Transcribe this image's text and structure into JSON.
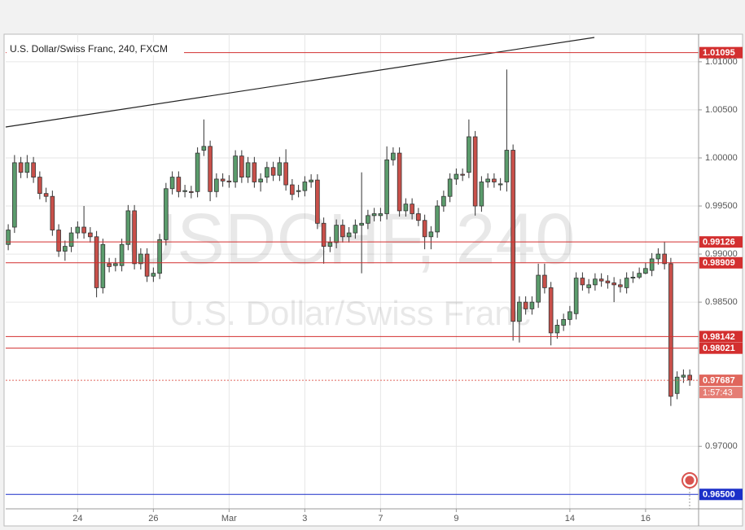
{
  "chart_data": {
    "type": "candlestick",
    "title": "U.S. Dollar/Swiss Franc, 240, FXCM",
    "watermark": {
      "symbol": "USDCHF, 240",
      "description": "U.S. Dollar/Swiss Franc"
    },
    "x": [
      0,
      1,
      2,
      3,
      4,
      5,
      6,
      7,
      8,
      9,
      10,
      11,
      12,
      13,
      14,
      15,
      16,
      17,
      18,
      19,
      20,
      21,
      22,
      23,
      24,
      25,
      26,
      27,
      28,
      29,
      30,
      31,
      32,
      33,
      34,
      35,
      36,
      37,
      38,
      39,
      40,
      41,
      42,
      43,
      44,
      45,
      46,
      47,
      48,
      49,
      50,
      51,
      52,
      53,
      54,
      55,
      56,
      57,
      58,
      59,
      60,
      61,
      62,
      63,
      64,
      65,
      66,
      67,
      68,
      69,
      70,
      71,
      72,
      73,
      74,
      75,
      76,
      77,
      78,
      79,
      80,
      81,
      82,
      83,
      84,
      85,
      86,
      87,
      88,
      89,
      90,
      91,
      92,
      93,
      94,
      95,
      96,
      97,
      98,
      99,
      100,
      101,
      102,
      103,
      104,
      105,
      106,
      107,
      108
    ],
    "open": [
      0.991,
      0.9928,
      0.9995,
      0.9985,
      0.9995,
      0.998,
      0.9963,
      0.996,
      0.9925,
      0.9903,
      0.9908,
      0.9922,
      0.9928,
      0.9922,
      0.9918,
      0.9865,
      0.989,
      0.9888,
      0.9888,
      0.991,
      0.9945,
      0.989,
      0.99,
      0.9877,
      0.988,
      0.9915,
      0.9968,
      0.998,
      0.9965,
      0.9965,
      0.9965,
      1.0008,
      1.0012,
      0.9965,
      0.9978,
      0.9976,
      0.9975,
      1.0002,
      0.998,
      0.9995,
      0.9975,
      0.998,
      0.999,
      0.9982,
      0.9995,
      0.9972,
      0.9965,
      0.9966,
      0.9975,
      0.9977,
      0.9932,
      0.9908,
      0.9912,
      0.993,
      0.9918,
      0.9922,
      0.993,
      0.9932,
      0.994,
      0.994,
      0.9942,
      0.9998,
      1.0005,
      0.9945,
      0.9952,
      0.9942,
      0.9935,
      0.9918,
      0.9923,
      0.995,
      0.996,
      0.9978,
      0.9983,
      0.9985,
      1.0022,
      0.995,
      0.9975,
      0.9978,
      0.9972,
      0.9975,
      1.0008,
      0.983,
      0.985,
      0.9843,
      0.985,
      0.9878,
      0.9865,
      0.9818,
      0.9826,
      0.9832,
      0.9838,
      0.9875,
      0.9865,
      0.9868,
      0.9874,
      0.9872,
      0.987,
      0.9868,
      0.9865,
      0.9875,
      0.9876,
      0.988,
      0.9883,
      0.9895,
      0.99,
      0.989,
      0.9755,
      0.9772,
      0.9774
    ],
    "high": [
      0.9931,
      1.0003,
      1.0001,
      1.0003,
      1.0001,
      0.9986,
      0.9969,
      0.9966,
      0.9931,
      0.9914,
      0.9928,
      0.9934,
      0.995,
      0.9928,
      0.9924,
      0.9916,
      0.9896,
      0.9896,
      0.9916,
      0.9951,
      0.9951,
      0.9906,
      0.9906,
      0.9886,
      0.9921,
      0.9974,
      0.9986,
      0.9986,
      0.9972,
      0.9971,
      1.0011,
      1.004,
      1.0018,
      0.9984,
      0.9984,
      0.9982,
      1.0008,
      1.0008,
      1.0001,
      1.0001,
      0.9984,
      0.9996,
      0.9996,
      1.0001,
      1.0009,
      0.9978,
      0.9972,
      0.9981,
      0.9983,
      0.9983,
      0.9938,
      0.9918,
      0.9936,
      0.9936,
      0.9928,
      0.9936,
      0.9985,
      0.9946,
      0.9948,
      0.9948,
      1.0012,
      1.0011,
      1.0011,
      0.9958,
      0.9958,
      0.9948,
      0.9941,
      0.9929,
      0.9956,
      0.9966,
      0.9984,
      0.9989,
      0.9989,
      1.004,
      1.0028,
      0.9981,
      0.9984,
      0.9984,
      0.9979,
      1.0092,
      1.0014,
      0.9856,
      0.9856,
      0.9856,
      0.989,
      0.989,
      0.9871,
      0.9832,
      0.9838,
      0.9846,
      0.9881,
      0.9881,
      0.9874,
      0.988,
      0.988,
      0.9878,
      0.9876,
      0.9874,
      0.9881,
      0.9882,
      0.9886,
      0.9891,
      0.9901,
      0.9906,
      0.9913,
      0.9896,
      0.9778,
      0.978,
      0.978
    ],
    "low": [
      0.9904,
      0.9922,
      0.9979,
      0.9979,
      0.9974,
      0.9957,
      0.9954,
      0.9919,
      0.9897,
      0.9893,
      0.9902,
      0.9916,
      0.9916,
      0.9912,
      0.9855,
      0.9859,
      0.9881,
      0.9882,
      0.9882,
      0.9904,
      0.9884,
      0.9884,
      0.9871,
      0.9871,
      0.9874,
      0.9909,
      0.9962,
      0.9959,
      0.9959,
      0.9958,
      0.9959,
      1.0002,
      0.9955,
      0.9959,
      0.997,
      0.9969,
      0.9969,
      0.9974,
      0.9974,
      0.9969,
      0.9965,
      0.9974,
      0.9976,
      0.9976,
      0.9966,
      0.9956,
      0.9959,
      0.996,
      0.9969,
      0.9926,
      0.989,
      0.9902,
      0.9906,
      0.9912,
      0.9912,
      0.9916,
      0.988,
      0.9926,
      0.9934,
      0.9934,
      0.9936,
      0.9992,
      0.9939,
      0.9939,
      0.9936,
      0.9929,
      0.9905,
      0.9905,
      0.9917,
      0.9944,
      0.9954,
      0.9972,
      0.9976,
      0.9979,
      0.994,
      0.9944,
      0.9969,
      0.9969,
      0.9966,
      0.9965,
      0.981,
      0.9808,
      0.9837,
      0.9837,
      0.9844,
      0.9859,
      0.9805,
      0.9812,
      0.982,
      0.9826,
      0.9832,
      0.9862,
      0.9859,
      0.9862,
      0.9866,
      0.9864,
      0.985,
      0.986,
      0.9859,
      0.987,
      0.9874,
      0.9879,
      0.9877,
      0.9889,
      0.9884,
      0.9742,
      0.9749,
      0.9766,
      0.9763
    ],
    "close": [
      0.9925,
      0.9995,
      0.9985,
      0.9995,
      0.998,
      0.9963,
      0.996,
      0.9925,
      0.9903,
      0.9908,
      0.9922,
      0.9928,
      0.9922,
      0.9918,
      0.9865,
      0.991,
      0.9887,
      0.989,
      0.991,
      0.9945,
      0.989,
      0.99,
      0.9877,
      0.988,
      0.9915,
      0.9968,
      0.998,
      0.9965,
      0.9966,
      0.9964,
      1.0005,
      1.0012,
      0.9965,
      0.9978,
      0.9976,
      0.9975,
      1.0002,
      0.998,
      0.9995,
      0.9975,
      0.9978,
      0.999,
      0.9982,
      0.9995,
      0.9972,
      0.9962,
      0.9966,
      0.9975,
      0.9977,
      0.9932,
      0.9908,
      0.9912,
      0.993,
      0.9918,
      0.9922,
      0.993,
      0.9932,
      0.994,
      0.9942,
      0.9942,
      0.9998,
      1.0005,
      0.9945,
      0.9952,
      0.9942,
      0.9935,
      0.9918,
      0.9923,
      0.995,
      0.996,
      0.9978,
      0.9983,
      0.9982,
      1.0022,
      0.995,
      0.9975,
      0.9978,
      0.9975,
      0.9973,
      1.0008,
      0.983,
      0.985,
      0.9843,
      0.985,
      0.9878,
      0.9865,
      0.9818,
      0.9826,
      0.9832,
      0.984,
      0.9875,
      0.9868,
      0.9868,
      0.9874,
      0.9872,
      0.987,
      0.9868,
      0.9866,
      0.9875,
      0.9876,
      0.988,
      0.9885,
      0.9895,
      0.99,
      0.989,
      0.9752,
      0.9772,
      0.9774,
      0.9769
    ],
    "up_color": "#5b9c6c",
    "down_color": "#c9504a",
    "xlim": [
      -0.4,
      109.4
    ],
    "xticks": [
      {
        "value": 11,
        "label": "24"
      },
      {
        "value": 23,
        "label": "26"
      },
      {
        "value": 35,
        "label": "Mar"
      },
      {
        "value": 47,
        "label": "3"
      },
      {
        "value": 59,
        "label": "7"
      },
      {
        "value": 71,
        "label": "9"
      },
      {
        "value": 89,
        "label": "14"
      },
      {
        "value": 101,
        "label": "16"
      }
    ],
    "ylim": [
      0.9635,
      1.0127
    ],
    "yticks": [
      {
        "value": 0.97,
        "label": "0.97000"
      },
      {
        "value": 0.985,
        "label": "0.98500"
      },
      {
        "value": 0.99,
        "label": "0.99000"
      },
      {
        "value": 0.995,
        "label": "0.99500"
      },
      {
        "value": 1.0,
        "label": "1.00000"
      },
      {
        "value": 1.005,
        "label": "1.00500"
      },
      {
        "value": 1.01,
        "label": "1.01000"
      }
    ],
    "grid": true,
    "levels": [
      {
        "value": 1.01095,
        "label": "1.01095",
        "color": "#d32f2f"
      },
      {
        "value": 0.99126,
        "label": "0.99126",
        "color": "#d32f2f"
      },
      {
        "value": 0.98909,
        "label": "0.98909",
        "color": "#d32f2f"
      },
      {
        "value": 0.98142,
        "label": "0.98142",
        "color": "#d32f2f"
      },
      {
        "value": 0.98021,
        "label": "0.98021",
        "color": "#d32f2f"
      },
      {
        "value": 0.965,
        "label": "0.96500",
        "color": "#1a2fc9"
      }
    ],
    "last_price": {
      "value": 0.97687,
      "label": "0.97687",
      "color": "#e0665c"
    },
    "countdown": "1:57:43"
  }
}
